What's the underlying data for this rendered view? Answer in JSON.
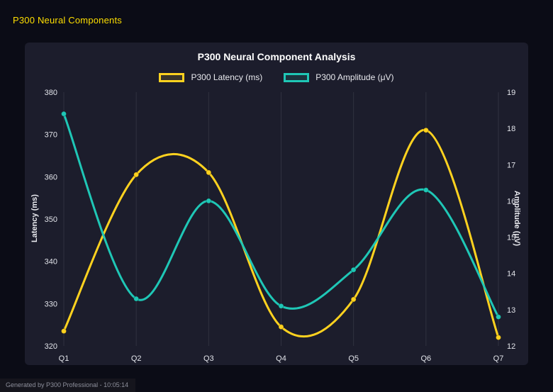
{
  "header": {
    "title": "P300 Neural Components"
  },
  "footer": {
    "status": "Generated by P300 Professional - 10:05:14"
  },
  "colors": {
    "yellow": "#ffd21f",
    "teal": "#1fc7b6",
    "grid": "rgba(255,255,255,0.09)",
    "tick_text": "#e2e4ea",
    "panel_bg": "#1c1d2c",
    "page_bg": "#0b0c16",
    "header_text": "#ffdf00"
  },
  "chart_data": {
    "type": "line",
    "title": "P300 Neural Component Analysis",
    "categories": [
      "Q1",
      "Q2",
      "Q3",
      "Q4",
      "Q5",
      "Q6",
      "Q7"
    ],
    "series": [
      {
        "name": "P300 Latency (ms)",
        "axis": "left",
        "color": "#ffd21f",
        "values": [
          323.5,
          360.5,
          361,
          324.5,
          331,
          371,
          322
        ]
      },
      {
        "name": "P300 Amplitude (μV)",
        "axis": "right",
        "color": "#1fc7b6",
        "values": [
          18.4,
          13.3,
          16.0,
          13.1,
          14.1,
          16.3,
          12.8
        ]
      }
    ],
    "left_axis": {
      "label": "Latency (ms)",
      "min": 320,
      "max": 380,
      "step": 10
    },
    "right_axis": {
      "label": "Amplitude (μV)",
      "min": 12,
      "max": 19,
      "step": 1
    },
    "grid": "vertical",
    "legend_position": "top",
    "curve": "smooth"
  }
}
